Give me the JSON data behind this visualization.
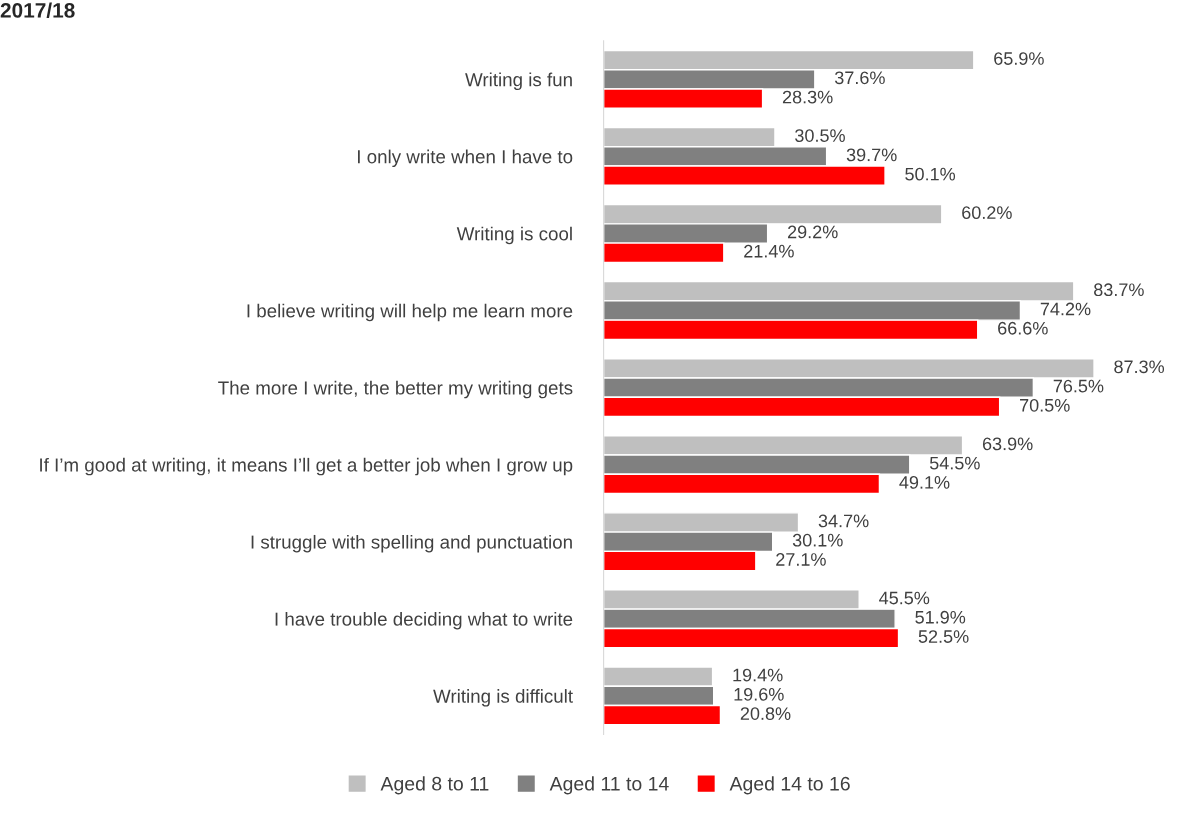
{
  "chart_data": {
    "type": "bar",
    "orientation": "horizontal",
    "title": "2017/18",
    "categories": [
      "Writing is fun",
      "I only write when I have to",
      "Writing is cool",
      "I believe writing will help me learn more",
      "The more I write, the better my writing gets",
      "If I’m good at writing, it means I’ll get a better job when I grow up",
      "I struggle with spelling and punctuation",
      "I have trouble deciding what to write",
      "Writing is difficult"
    ],
    "series": [
      {
        "name": "Aged 8 to 11",
        "color": "#bfbfbf",
        "values": [
          65.9,
          30.5,
          60.2,
          83.7,
          87.3,
          63.9,
          34.7,
          45.5,
          19.4
        ],
        "value_labels": [
          "65.9%",
          "30.5%",
          "60.2%",
          "83.7%",
          "87.3%",
          "63.9%",
          "34.7%",
          "45.5%",
          "19.4%"
        ]
      },
      {
        "name": "Aged 11 to 14",
        "color": "#808080",
        "values": [
          37.6,
          39.7,
          29.2,
          74.2,
          76.5,
          54.5,
          30.1,
          51.9,
          19.6
        ],
        "value_labels": [
          "37.6%",
          "39.7%",
          "29.2%",
          "74.2%",
          "76.5%",
          "54.5%",
          "30.1%",
          "51.9%",
          "19.6%"
        ]
      },
      {
        "name": "Aged 14 to 16",
        "color": "#ff0000",
        "values": [
          28.3,
          50.1,
          21.4,
          66.6,
          70.5,
          49.1,
          27.1,
          52.5,
          20.8
        ],
        "value_labels": [
          "28.3%",
          "50.1%",
          "21.4%",
          "66.6%",
          "70.5%",
          "49.1%",
          "27.1%",
          "52.5%",
          "20.8%"
        ]
      }
    ],
    "legend": "bottom",
    "grid": false
  }
}
